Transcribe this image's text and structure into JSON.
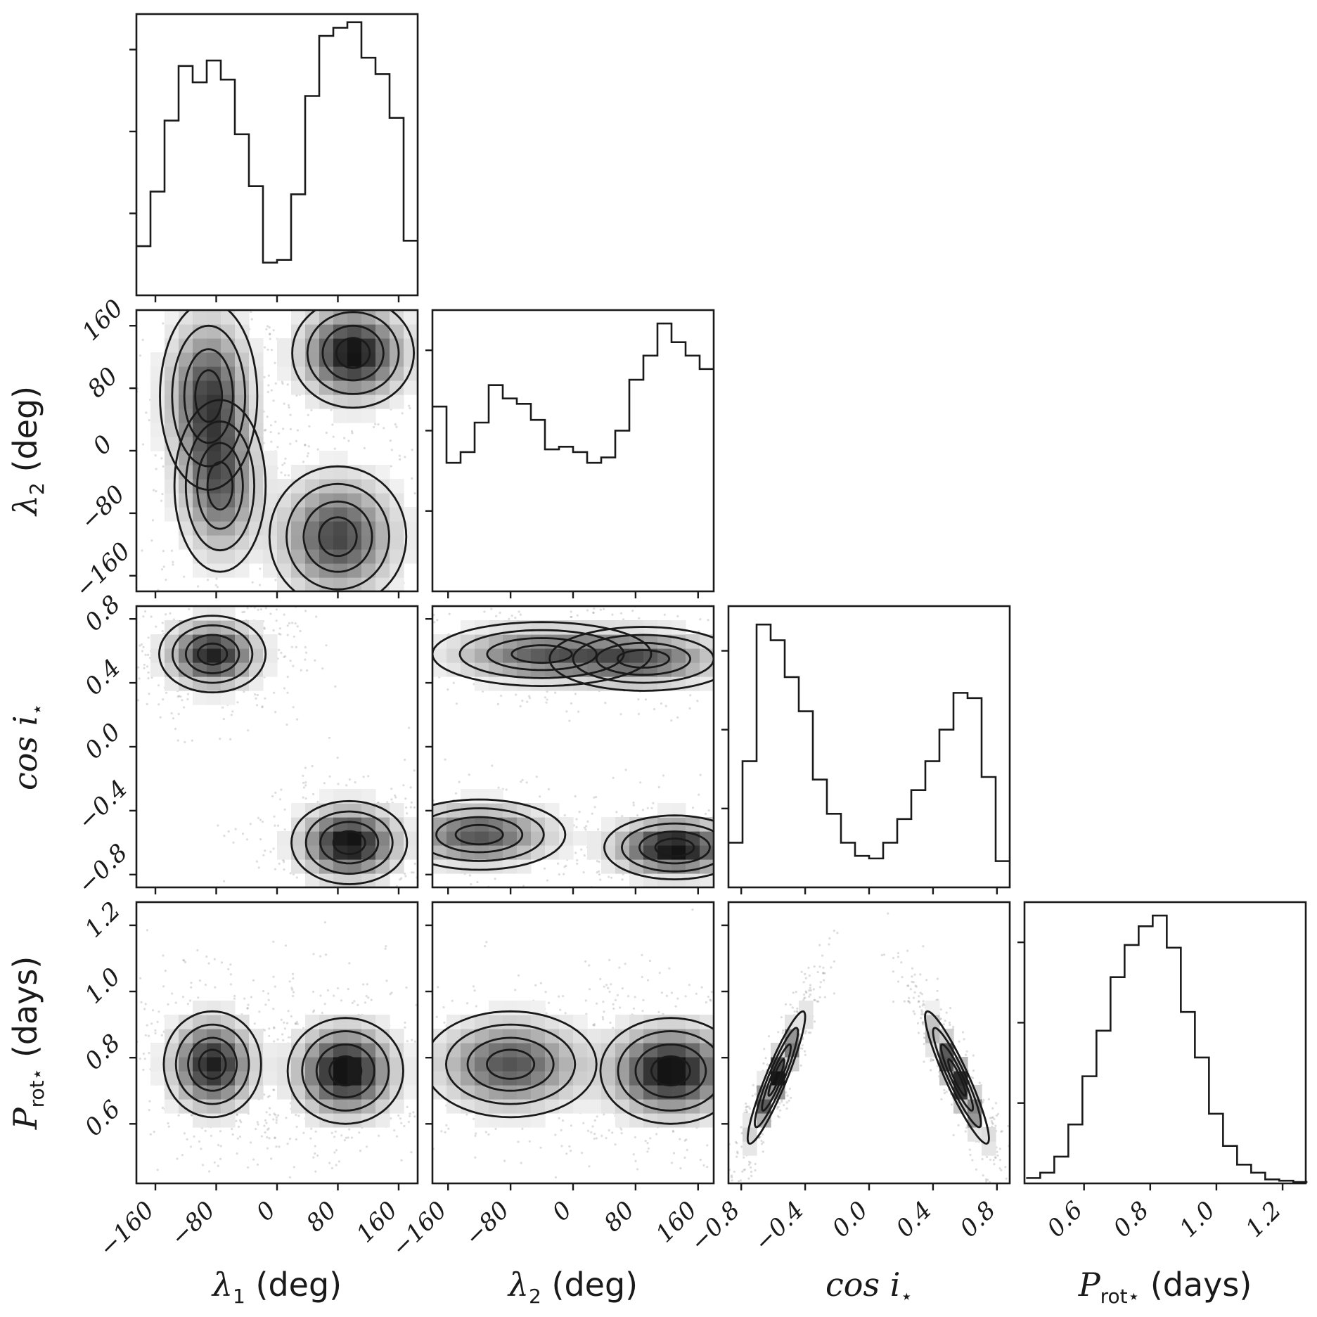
{
  "chart_data": {
    "type": "corner",
    "parameters": [
      {
        "key": "lambda1",
        "label_math": "λ",
        "label_sub": "1",
        "label_text": " (deg)",
        "range": [
          -185,
          185
        ],
        "ticks": [
          -160,
          -80,
          0,
          80,
          160
        ],
        "tick_labels": [
          "−160",
          "−80",
          "0",
          "80",
          "160"
        ]
      },
      {
        "key": "lambda2",
        "label_math": "λ",
        "label_sub": "2",
        "label_text": " (deg)",
        "range": [
          -180,
          180
        ],
        "ticks": [
          -160,
          -80,
          0,
          80,
          160
        ],
        "tick_labels": [
          "−160",
          "−80",
          "0",
          "80",
          "160"
        ]
      },
      {
        "key": "cosi",
        "label_math": "cos i",
        "label_sub": "⋆",
        "label_text": "",
        "range": [
          -0.88,
          0.88
        ],
        "ticks": [
          -0.8,
          -0.4,
          0.0,
          0.4,
          0.8
        ],
        "tick_labels": [
          "−0.8",
          "−0.4",
          "0.0",
          "0.4",
          "0.8"
        ]
      },
      {
        "key": "prot",
        "label_math": "P",
        "label_sub": "rot⋆",
        "label_text": " (days)",
        "range": [
          0.42,
          1.27
        ],
        "ticks": [
          0.6,
          0.8,
          1.0,
          1.2
        ],
        "tick_labels": [
          "0.6",
          "0.8",
          "1.0",
          "1.2"
        ]
      }
    ],
    "histograms": [
      {
        "param": "lambda1",
        "edges_start": -185,
        "bin_width": 18.5,
        "counts": [
          18,
          38,
          64,
          84,
          78,
          86,
          79,
          59,
          40,
          12,
          13,
          37,
          73,
          95,
          98,
          100,
          87,
          81,
          65,
          20
        ],
        "ylim": [
          0,
          103
        ],
        "yticks": [
          30,
          60,
          90
        ]
      },
      {
        "param": "lambda2",
        "edges_start": -180,
        "bin_width": 18,
        "counts": [
          69,
          48,
          52,
          63,
          77,
          72,
          70,
          64,
          53,
          54,
          52,
          48,
          50,
          60,
          79,
          88,
          100,
          93,
          88,
          83
        ],
        "ylim": [
          0,
          105
        ],
        "yticks": [
          30,
          60,
          90
        ]
      },
      {
        "param": "cosi",
        "edges_start": -0.88,
        "bin_width": 0.088,
        "counts": [
          17,
          48,
          100,
          94,
          80,
          67,
          41,
          28,
          17,
          12,
          11,
          17,
          26,
          37,
          48,
          60,
          74,
          72,
          42,
          10
        ],
        "ylim": [
          0,
          107
        ],
        "yticks": [
          30,
          60,
          90
        ]
      },
      {
        "param": "prot",
        "edges_start": 0.425,
        "bin_width": 0.0425,
        "counts": [
          2,
          4,
          10,
          22,
          40,
          57,
          77,
          89,
          96,
          100,
          88,
          64,
          47,
          26,
          14,
          7,
          4,
          1.5,
          1,
          0.5
        ],
        "ylim": [
          0,
          105
        ],
        "yticks": [
          30,
          60,
          90
        ]
      }
    ],
    "pairs": [
      {
        "x": "lambda1",
        "y": "lambda2",
        "modes": [
          {
            "cx": -90,
            "cy": 70,
            "sx": 32,
            "sy": 60,
            "w": 1.0
          },
          {
            "cx": -75,
            "cy": -45,
            "sx": 30,
            "sy": 55,
            "w": 0.8
          },
          {
            "cx": 100,
            "cy": 125,
            "sx": 40,
            "sy": 35,
            "w": 1.3
          },
          {
            "cx": 80,
            "cy": -110,
            "sx": 45,
            "sy": 45,
            "w": 1.0
          }
        ]
      },
      {
        "x": "lambda1",
        "y": "cosi",
        "modes": [
          {
            "cx": -85,
            "cy": 0.58,
            "sx": 35,
            "sy": 0.12,
            "w": 1.0
          },
          {
            "cx": 95,
            "cy": -0.6,
            "sx": 38,
            "sy": 0.13,
            "w": 1.1
          }
        ]
      },
      {
        "x": "lambda1",
        "y": "prot",
        "modes": [
          {
            "cx": -85,
            "cy": 0.78,
            "sx": 32,
            "sy": 0.08,
            "w": 1.0
          },
          {
            "cx": 90,
            "cy": 0.76,
            "sx": 38,
            "sy": 0.08,
            "w": 1.1
          }
        ]
      },
      {
        "x": "lambda2",
        "y": "cosi",
        "modes": [
          {
            "cx": -40,
            "cy": 0.58,
            "sx": 70,
            "sy": 0.1,
            "w": 0.8
          },
          {
            "cx": 90,
            "cy": 0.55,
            "sx": 60,
            "sy": 0.1,
            "w": 0.8
          },
          {
            "cx": 130,
            "cy": -0.63,
            "sx": 45,
            "sy": 0.1,
            "w": 1.3
          },
          {
            "cx": -120,
            "cy": -0.55,
            "sx": 55,
            "sy": 0.11,
            "w": 0.9
          }
        ]
      },
      {
        "x": "lambda2",
        "y": "prot",
        "modes": [
          {
            "cx": -80,
            "cy": 0.78,
            "sx": 55,
            "sy": 0.08,
            "w": 0.9
          },
          {
            "cx": 125,
            "cy": 0.76,
            "sx": 45,
            "sy": 0.08,
            "w": 1.3
          }
        ]
      },
      {
        "x": "cosi",
        "y": "prot",
        "modes": [
          {
            "cx": -0.58,
            "cy": 0.74,
            "sx": 0.09,
            "sy": 0.1,
            "w": 1.0,
            "rho": 0.92
          },
          {
            "cx": 0.55,
            "cy": 0.74,
            "sx": 0.1,
            "sy": 0.1,
            "w": 1.0,
            "rho": -0.92
          }
        ]
      }
    ]
  }
}
